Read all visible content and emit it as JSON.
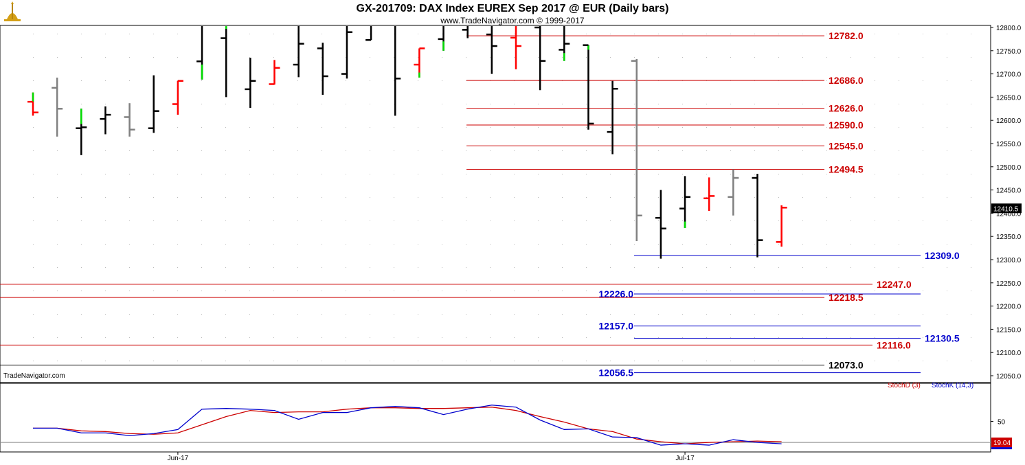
{
  "header": {
    "title": "GX-201709:  DAX Index EUREX Sep 2017 @ EUR  (Daily bars)",
    "subtitle": "www.TradeNavigator.com © 1999-2017"
  },
  "watermark": "TradeNavigator.com",
  "colors": {
    "up_bar": "#000000",
    "down_bar": "#ff0000",
    "neutral_bar": "#808080",
    "highlight": "#00dd00",
    "resistance_line": "#cc0000",
    "support_line": "#0000cc",
    "neutral_line": "#000000",
    "stoch_d": "#cc0000",
    "stoch_k": "#0000cc"
  },
  "chart_data": [
    {
      "type": "ohlc",
      "title": "GX-201709:  DAX Index EUREX Sep 2017 @ EUR  (Daily bars)",
      "ylim": [
        12035,
        12815
      ],
      "y_ticks": [
        "12800.0",
        "12750.0",
        "12700.0",
        "12650.0",
        "12600.0",
        "12550.0",
        "12500.0",
        "12450.0",
        "12400.0",
        "12350.0",
        "12300.0",
        "12250.0",
        "12200.0",
        "12150.0",
        "12100.0",
        "12050.0"
      ],
      "x_ticks": [
        {
          "label": "Jun-17",
          "index": 6
        },
        {
          "label": "Jul-17",
          "index": 27
        }
      ],
      "last_price": "12410.5",
      "bars": [
        {
          "o": 12640,
          "h": 12660,
          "l": 12610,
          "c": 12617,
          "color": "red",
          "hi_wick": 12640
        },
        {
          "o": 12670,
          "h": 12692,
          "l": 12565,
          "c": 12625,
          "color": "gray"
        },
        {
          "o": 12583,
          "h": 12625,
          "l": 12525,
          "c": 12585,
          "color": "black",
          "hi_wick": 12592
        },
        {
          "o": 12603,
          "h": 12630,
          "l": 12570,
          "c": 12612,
          "color": "black"
        },
        {
          "o": 12607,
          "h": 12637,
          "l": 12565,
          "c": 12580,
          "color": "gray"
        },
        {
          "o": 12583,
          "h": 12697,
          "l": 12573,
          "c": 12620,
          "color": "black"
        },
        {
          "o": 12635,
          "h": 12685,
          "l": 12612,
          "c": 12685,
          "color": "red"
        },
        {
          "o": 12727,
          "h": 12815,
          "l": 12688,
          "c": 12815,
          "color": "black",
          "lo_wick": 12720
        },
        {
          "o": 12777,
          "h": 12815,
          "l": 12650,
          "c": 12815,
          "color": "black",
          "hi_wick": 12797
        },
        {
          "o": 12667,
          "h": 12735,
          "l": 12627,
          "c": 12685,
          "color": "black"
        },
        {
          "o": 12678,
          "h": 12730,
          "l": 12677,
          "c": 12713,
          "color": "red"
        },
        {
          "o": 12720,
          "h": 12815,
          "l": 12693,
          "c": 12765,
          "color": "black"
        },
        {
          "o": 12755,
          "h": 12767,
          "l": 12655,
          "c": 12695,
          "color": "black"
        },
        {
          "o": 12700,
          "h": 12815,
          "l": 12690,
          "c": 12790,
          "color": "black"
        },
        {
          "o": 12773,
          "h": 12815,
          "l": 12773,
          "c": 12815,
          "color": "black"
        },
        {
          "o": 12815,
          "h": 12815,
          "l": 12610,
          "c": 12690,
          "color": "black"
        },
        {
          "o": 12720,
          "h": 12755,
          "l": 12692,
          "c": 12755,
          "color": "red",
          "lo_wick": 12703
        },
        {
          "o": 12775,
          "h": 12815,
          "l": 12750,
          "c": 12815,
          "color": "black",
          "lo_wick": 12770
        },
        {
          "o": 12795,
          "h": 12815,
          "l": 12777,
          "c": 12815,
          "color": "black"
        },
        {
          "o": 12785,
          "h": 12815,
          "l": 12700,
          "c": 12760,
          "color": "black"
        },
        {
          "o": 12778,
          "h": 12815,
          "l": 12710,
          "c": 12760,
          "color": "red"
        },
        {
          "o": 12800,
          "h": 12815,
          "l": 12665,
          "c": 12728,
          "color": "black"
        },
        {
          "o": 12752,
          "h": 12815,
          "l": 12728,
          "c": 12765,
          "color": "black",
          "lo_wick": 12745
        },
        {
          "o": 12762,
          "h": 12762,
          "l": 12580,
          "c": 12593,
          "color": "black",
          "hi_wick": 12752
        },
        {
          "o": 12575,
          "h": 12685,
          "l": 12527,
          "c": 12668,
          "color": "black"
        },
        {
          "o": 12728,
          "h": 12732,
          "l": 12340,
          "c": 12395,
          "color": "gray"
        },
        {
          "o": 12390,
          "h": 12450,
          "l": 12302,
          "c": 12367,
          "color": "black"
        },
        {
          "o": 12410,
          "h": 12480,
          "l": 12368,
          "c": 12435,
          "color": "black",
          "lo_wick": 12382
        },
        {
          "o": 12432,
          "h": 12477,
          "l": 12405,
          "c": 12437,
          "color": "red"
        },
        {
          "o": 12435,
          "h": 12494.5,
          "l": 12395,
          "c": 12476,
          "color": "gray"
        },
        {
          "o": 12476,
          "h": 12485,
          "l": 12305,
          "c": 12342,
          "color": "black"
        },
        {
          "o": 12338,
          "h": 12417,
          "l": 12328,
          "c": 12412,
          "color": "red"
        }
      ]
    },
    {
      "type": "line",
      "title": "",
      "ylim": [
        8,
        98
      ],
      "y_ticks": [
        "50"
      ],
      "last_value": "19.04",
      "series": [
        {
          "name": "StochD (3)",
          "color": "#cc0000",
          "values": [
            40,
            40,
            36,
            35,
            32,
            31,
            33,
            45,
            57,
            66,
            63,
            64,
            64,
            68,
            70,
            70,
            69,
            69,
            70,
            71,
            66,
            57,
            49,
            39,
            35,
            24,
            20,
            17,
            19,
            20,
            21,
            20
          ]
        },
        {
          "name": "StochK (14,3)",
          "color": "#0000cc",
          "values": [
            40,
            40,
            33,
            33,
            29,
            32,
            38,
            68,
            69,
            68,
            66,
            53,
            63,
            63,
            70,
            72,
            70,
            60,
            68,
            74,
            71,
            52,
            38,
            39,
            27,
            26,
            15,
            17,
            15,
            23,
            19,
            17
          ]
        }
      ]
    }
  ],
  "levels_right": [
    {
      "value": 12782.0,
      "label": "12782.0",
      "kind": "resistance"
    },
    {
      "value": 12686.0,
      "label": "12686.0",
      "kind": "resistance"
    },
    {
      "value": 12626.0,
      "label": "12626.0",
      "kind": "resistance"
    },
    {
      "value": 12590.0,
      "label": "12590.0",
      "kind": "resistance"
    },
    {
      "value": 12545.0,
      "label": "12545.0",
      "kind": "resistance"
    },
    {
      "value": 12494.5,
      "label": "12494.5",
      "kind": "resistance"
    }
  ],
  "levels_support": [
    {
      "value": 12309.0,
      "label": "12309.0",
      "kind": "support"
    },
    {
      "value": 12247.0,
      "label": "12247.0",
      "kind": "resistance"
    },
    {
      "value": 12226.0,
      "label": "12226.0",
      "kind": "support"
    },
    {
      "value": 12218.5,
      "label": "12218.5",
      "kind": "resistance"
    },
    {
      "value": 12157.0,
      "label": "12157.0",
      "kind": "support"
    },
    {
      "value": 12130.5,
      "label": "12130.5",
      "kind": "support"
    },
    {
      "value": 12116.0,
      "label": "12116.0",
      "kind": "resistance"
    },
    {
      "value": 12073.0,
      "label": "12073.0",
      "kind": "neutral"
    },
    {
      "value": 12056.5,
      "label": "12056.5",
      "kind": "support"
    }
  ]
}
